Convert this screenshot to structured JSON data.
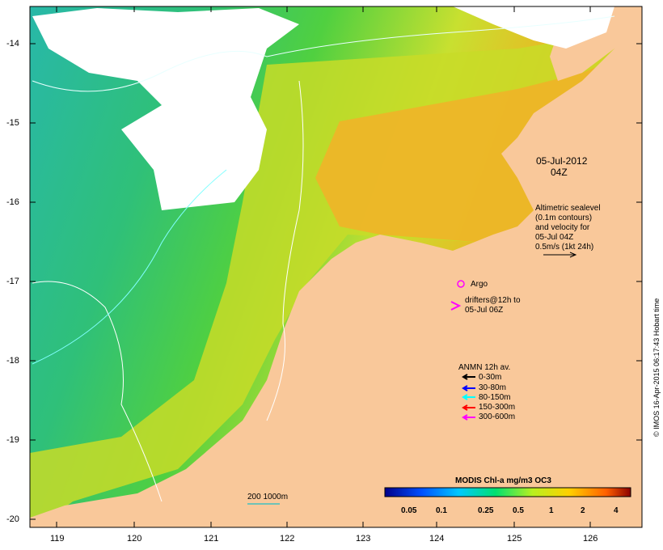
{
  "map": {
    "lat_ticks": [
      "-14",
      "-15",
      "-16",
      "-17",
      "-18",
      "-19",
      "-20"
    ],
    "lon_ticks": [
      "119",
      "120",
      "121",
      "122",
      "123",
      "124",
      "125",
      "126"
    ],
    "date_line1": "05-Jul-2012",
    "date_line2": "04Z",
    "sealevel_lines": [
      "Altimetric sealevel",
      "(0.1m contours)",
      "and velocity for",
      "05-Jul 04Z",
      "0.5m/s (1kt 24h)"
    ],
    "argo_label": "Argo",
    "drifters_lines": [
      "drifters@12h to",
      "05-Jul 06Z"
    ],
    "anmn_title": "ANMN 12h av.",
    "anmn_legend": [
      {
        "label": "0-30m",
        "color": "#000000"
      },
      {
        "label": "30-80m",
        "color": "#0000ff"
      },
      {
        "label": "80-150m",
        "color": "#00ffff"
      },
      {
        "label": "150-300m",
        "color": "#ff0000"
      },
      {
        "label": "300-600m",
        "color": "#ff00ff"
      }
    ],
    "colorbar_title": "MODIS Chl-a mg/m3 OC3",
    "colorbar_labels": [
      "0.05",
      "0.1",
      "0.25",
      "0.5",
      "1",
      "2",
      "4"
    ],
    "scale_label": "200  1000m",
    "credit": "© IMOS 16-Apr-2015 06:17:43 Hobart time",
    "colors": {
      "land": "#f9c89a",
      "cloud": "#ffffff"
    }
  }
}
